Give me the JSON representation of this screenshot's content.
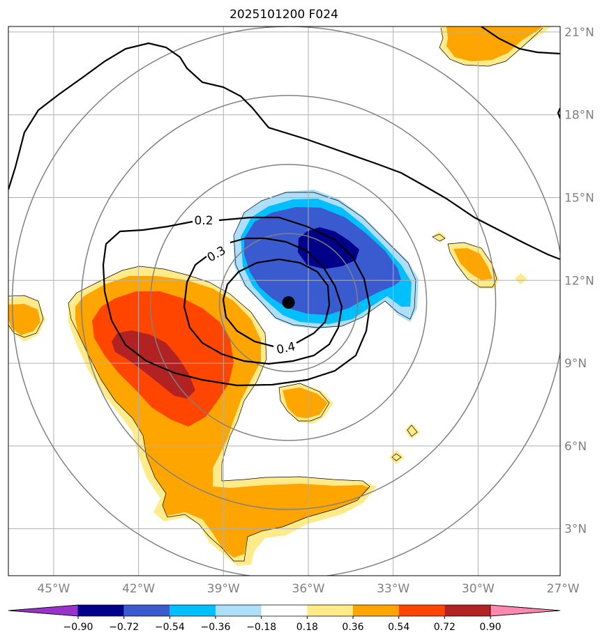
{
  "chart_data": {
    "type": "contour-map",
    "title": "2025101200 F024",
    "x_ticks": [
      "45°W",
      "42°W",
      "39°W",
      "36°W",
      "33°W",
      "30°W",
      "27°W"
    ],
    "y_ticks": [
      "21°N",
      "18°N",
      "15°N",
      "12°N",
      "9°N",
      "6°N",
      "3°N"
    ],
    "lon_range": [
      -46.6,
      -27.1
    ],
    "lat_range": [
      1.3,
      21.2
    ],
    "grid": true,
    "center_marker": {
      "lon": -36.7,
      "lat": 11.2
    },
    "range_rings_deg": [
      2.5,
      5,
      7.5,
      10
    ],
    "line_contour_levels": [
      0.2,
      0.3,
      0.4
    ],
    "line_contour_labels": [
      "0.2",
      "0.3",
      "0.4"
    ],
    "colorbar": {
      "ticks": [
        "−0.90",
        "−0.72",
        "−0.54",
        "−0.36",
        "−0.18",
        "0.18",
        "0.36",
        "0.54",
        "0.72",
        "0.90"
      ],
      "colors": [
        "#9933CC",
        "#000088",
        "#3A5BCF",
        "#00BFFF",
        "#ADDFFB",
        "#FFFFFF",
        "#FFEB8A",
        "#FFA500",
        "#FF4500",
        "#B22222",
        "#FF88B0"
      ],
      "extend": "both"
    }
  }
}
